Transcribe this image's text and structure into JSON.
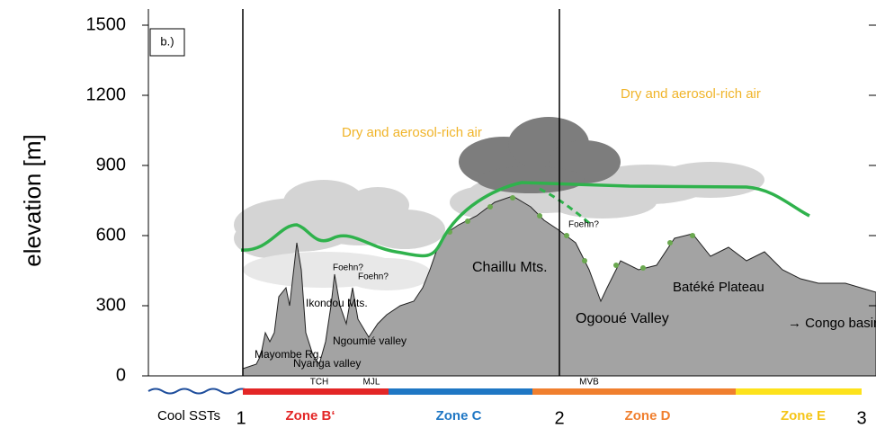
{
  "axis": {
    "label": "elevation [m]",
    "ylim": [
      0,
      1500
    ],
    "yticks": [
      0,
      300,
      600,
      900,
      1200,
      1500
    ]
  },
  "panel_label": "b.)",
  "air_labels": [
    "Dry and aerosol-rich air",
    "Dry and aerosol-rich air"
  ],
  "terrain_labels": [
    "Chaillu Mts.",
    "Ogooué Valley",
    "Batéké Plateau",
    "→ Congo basin",
    "Ikondou Mts.",
    "Ngoumié valley",
    "Mayombe Rg.",
    "Nyanga valley"
  ],
  "foehn_labels": [
    "Foehn?",
    "Foehn?",
    "Foehn?"
  ],
  "stations": [
    "TCH",
    "MJL",
    "MVB"
  ],
  "section_marks": [
    "1",
    "2",
    "3"
  ],
  "zones": [
    "Cool SSTs",
    "Zone B‘",
    "Zone C",
    "Zone D",
    "Zone E"
  ]
}
